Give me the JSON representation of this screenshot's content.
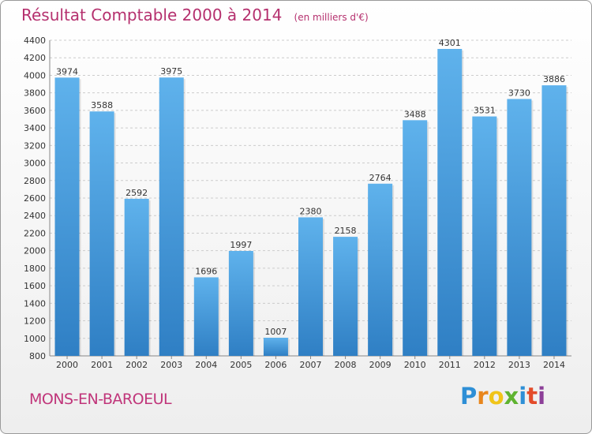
{
  "header": {
    "title": "Résultat Comptable 2000 à 2014",
    "subtitle": "(en milliers d'€)"
  },
  "footer": {
    "city": "MONS-EN-BAROEUL",
    "logo_letters": [
      "P",
      "r",
      "o",
      "x",
      "i",
      "t",
      "i"
    ],
    "logo_colors": [
      "#2e8fd6",
      "#e8861c",
      "#f0c419",
      "#5fb330",
      "#2e8fd6",
      "#e34b2a",
      "#8c3f98"
    ]
  },
  "colors": {
    "bar_light": "#5fb2ec",
    "bar_dark": "#2f7fc4",
    "grid": "#cccccc",
    "title": "#b5306e"
  },
  "chart_data": {
    "type": "bar",
    "title": "Résultat Comptable 2000 à 2014",
    "subtitle": "(en milliers d'€)",
    "categories": [
      "2000",
      "2001",
      "2002",
      "2003",
      "2004",
      "2005",
      "2006",
      "2007",
      "2008",
      "2009",
      "2010",
      "2011",
      "2012",
      "2013",
      "2014"
    ],
    "values": [
      3974,
      3588,
      2592,
      3975,
      1696,
      1997,
      1007,
      2380,
      2158,
      2764,
      3488,
      4301,
      3531,
      3730,
      3886
    ],
    "ylim": [
      800,
      4400
    ],
    "yticks": [
      800,
      1000,
      1200,
      1400,
      1600,
      1800,
      2000,
      2200,
      2400,
      2600,
      2800,
      3000,
      3200,
      3400,
      3600,
      3800,
      4000,
      4200,
      4400
    ],
    "grid": true,
    "data_labels": true
  }
}
